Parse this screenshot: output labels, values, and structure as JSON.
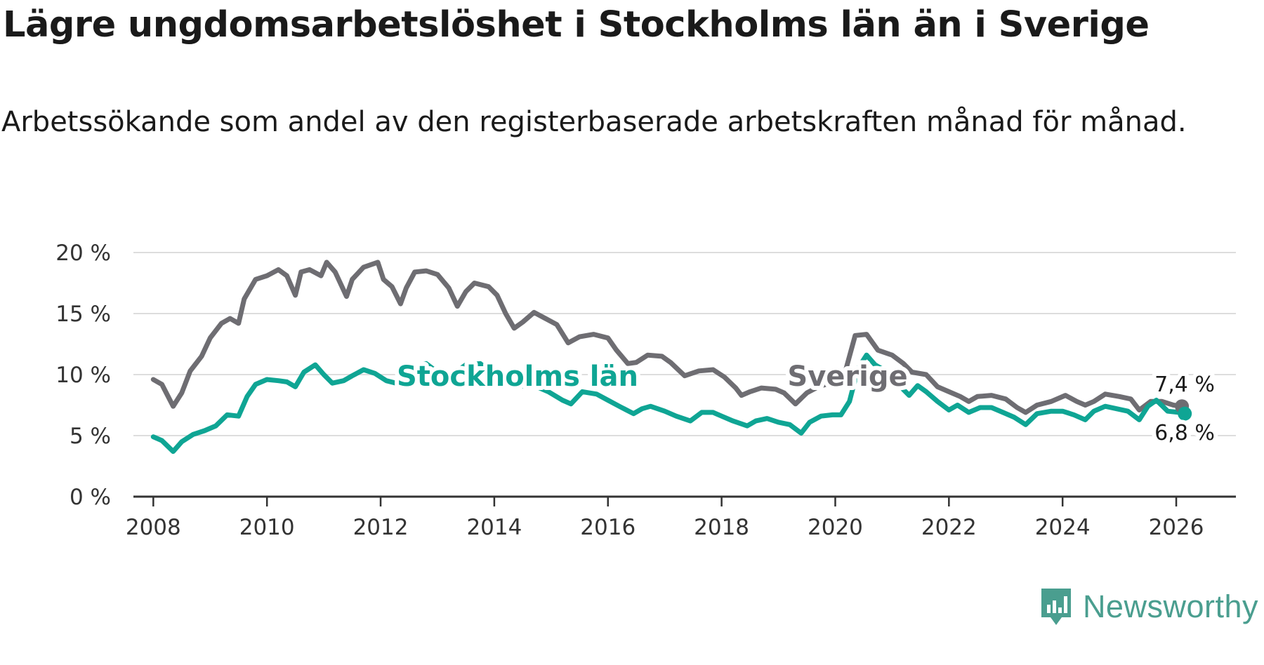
{
  "title": "Lägre ungdomsarbetslöshet i Stockholms län än i Sverige",
  "subtitle": "Arbetssökande som andel av den registerbaserade arbetskraften månad för månad.",
  "brand": "Newsworthy",
  "colors": {
    "sverige": "#6e6d72",
    "stockholm": "#0fa594",
    "grid": "#dddddd",
    "axis": "#333333",
    "text": "#333333"
  },
  "chart_data": {
    "type": "line",
    "title": "Lägre ungdomsarbetslöshet i Stockholms län än i Sverige",
    "xlabel": "",
    "ylabel": "",
    "xlim": [
      2007.65,
      2027.05
    ],
    "ylim": [
      0,
      20
    ],
    "xticks": [
      2008,
      2010,
      2012,
      2014,
      2016,
      2018,
      2020,
      2022,
      2024,
      2026
    ],
    "xtick_labels": [
      "2008",
      "2010",
      "2012",
      "2014",
      "2016",
      "2018",
      "2020",
      "2022",
      "2024",
      "2026"
    ],
    "yticks": [
      0,
      5,
      10,
      15,
      20
    ],
    "ytick_labels": [
      "0 %",
      "5 %",
      "10 %",
      "15 %",
      "20 %"
    ],
    "grid": true,
    "series": [
      {
        "name": "Sverige",
        "label": "Sverige",
        "end_label": "7,4 %",
        "points": [
          [
            2008.0,
            9.6
          ],
          [
            2008.15,
            9.2
          ],
          [
            2008.35,
            7.4
          ],
          [
            2008.5,
            8.5
          ],
          [
            2008.65,
            10.3
          ],
          [
            2008.85,
            11.5
          ],
          [
            2009.0,
            13.0
          ],
          [
            2009.2,
            14.2
          ],
          [
            2009.35,
            14.6
          ],
          [
            2009.5,
            14.2
          ],
          [
            2009.6,
            16.2
          ],
          [
            2009.8,
            17.8
          ],
          [
            2010.0,
            18.1
          ],
          [
            2010.2,
            18.6
          ],
          [
            2010.35,
            18.1
          ],
          [
            2010.5,
            16.5
          ],
          [
            2010.6,
            18.4
          ],
          [
            2010.75,
            18.6
          ],
          [
            2010.95,
            18.1
          ],
          [
            2011.05,
            19.2
          ],
          [
            2011.2,
            18.4
          ],
          [
            2011.4,
            16.4
          ],
          [
            2011.5,
            17.8
          ],
          [
            2011.7,
            18.8
          ],
          [
            2011.95,
            19.2
          ],
          [
            2012.05,
            17.8
          ],
          [
            2012.2,
            17.2
          ],
          [
            2012.35,
            15.8
          ],
          [
            2012.45,
            17.1
          ],
          [
            2012.6,
            18.4
          ],
          [
            2012.8,
            18.5
          ],
          [
            2013.0,
            18.2
          ],
          [
            2013.2,
            17.1
          ],
          [
            2013.35,
            15.6
          ],
          [
            2013.5,
            16.8
          ],
          [
            2013.65,
            17.5
          ],
          [
            2013.9,
            17.2
          ],
          [
            2014.05,
            16.5
          ],
          [
            2014.2,
            15.0
          ],
          [
            2014.35,
            13.8
          ],
          [
            2014.5,
            14.3
          ],
          [
            2014.7,
            15.1
          ],
          [
            2014.9,
            14.6
          ],
          [
            2015.1,
            14.1
          ],
          [
            2015.3,
            12.6
          ],
          [
            2015.5,
            13.1
          ],
          [
            2015.75,
            13.3
          ],
          [
            2016.0,
            13.0
          ],
          [
            2016.15,
            12.0
          ],
          [
            2016.35,
            10.9
          ],
          [
            2016.5,
            11.0
          ],
          [
            2016.7,
            11.6
          ],
          [
            2016.95,
            11.5
          ],
          [
            2017.1,
            11.0
          ],
          [
            2017.35,
            9.9
          ],
          [
            2017.6,
            10.3
          ],
          [
            2017.85,
            10.4
          ],
          [
            2018.05,
            9.8
          ],
          [
            2018.25,
            8.9
          ],
          [
            2018.35,
            8.3
          ],
          [
            2018.5,
            8.6
          ],
          [
            2018.7,
            8.9
          ],
          [
            2018.95,
            8.8
          ],
          [
            2019.1,
            8.5
          ],
          [
            2019.3,
            7.6
          ],
          [
            2019.5,
            8.5
          ],
          [
            2019.7,
            9.0
          ],
          [
            2019.9,
            9.3
          ],
          [
            2020.15,
            9.8
          ],
          [
            2020.35,
            13.2
          ],
          [
            2020.55,
            13.3
          ],
          [
            2020.75,
            12.0
          ],
          [
            2021.0,
            11.6
          ],
          [
            2021.2,
            10.9
          ],
          [
            2021.35,
            10.2
          ],
          [
            2021.6,
            10.0
          ],
          [
            2021.8,
            9.0
          ],
          [
            2022.0,
            8.6
          ],
          [
            2022.2,
            8.2
          ],
          [
            2022.35,
            7.8
          ],
          [
            2022.5,
            8.2
          ],
          [
            2022.75,
            8.3
          ],
          [
            2023.0,
            8.0
          ],
          [
            2023.2,
            7.3
          ],
          [
            2023.35,
            6.9
          ],
          [
            2023.55,
            7.5
          ],
          [
            2023.8,
            7.8
          ],
          [
            2024.05,
            8.3
          ],
          [
            2024.25,
            7.8
          ],
          [
            2024.4,
            7.5
          ],
          [
            2024.55,
            7.8
          ],
          [
            2024.75,
            8.4
          ],
          [
            2025.0,
            8.2
          ],
          [
            2025.2,
            8.0
          ],
          [
            2025.35,
            7.1
          ],
          [
            2025.55,
            7.8
          ],
          [
            2025.75,
            7.8
          ],
          [
            2025.95,
            7.5
          ],
          [
            2026.1,
            7.4
          ]
        ]
      },
      {
        "name": "Stockholms län",
        "label": "Stockholms län",
        "end_label": "6,8 %",
        "points": [
          [
            2008.0,
            4.9
          ],
          [
            2008.15,
            4.6
          ],
          [
            2008.35,
            3.7
          ],
          [
            2008.5,
            4.5
          ],
          [
            2008.7,
            5.1
          ],
          [
            2008.9,
            5.4
          ],
          [
            2009.1,
            5.8
          ],
          [
            2009.3,
            6.7
          ],
          [
            2009.5,
            6.6
          ],
          [
            2009.65,
            8.2
          ],
          [
            2009.8,
            9.2
          ],
          [
            2010.0,
            9.6
          ],
          [
            2010.2,
            9.5
          ],
          [
            2010.35,
            9.4
          ],
          [
            2010.5,
            9.0
          ],
          [
            2010.65,
            10.2
          ],
          [
            2010.85,
            10.8
          ],
          [
            2011.0,
            10.0
          ],
          [
            2011.15,
            9.3
          ],
          [
            2011.35,
            9.5
          ],
          [
            2011.5,
            9.9
          ],
          [
            2011.7,
            10.4
          ],
          [
            2011.9,
            10.1
          ],
          [
            2012.1,
            9.5
          ],
          [
            2012.35,
            9.2
          ],
          [
            2012.6,
            10.6
          ],
          [
            2012.8,
            10.9
          ],
          [
            2013.0,
            10.2
          ],
          [
            2013.25,
            10.0
          ],
          [
            2013.5,
            10.8
          ],
          [
            2013.75,
            10.9
          ],
          [
            2014.0,
            10.0
          ],
          [
            2014.2,
            9.3
          ],
          [
            2014.4,
            9.0
          ],
          [
            2014.65,
            9.2
          ],
          [
            2014.95,
            8.6
          ],
          [
            2015.2,
            7.9
          ],
          [
            2015.35,
            7.6
          ],
          [
            2015.55,
            8.6
          ],
          [
            2015.8,
            8.4
          ],
          [
            2016.0,
            7.9
          ],
          [
            2016.2,
            7.4
          ],
          [
            2016.45,
            6.8
          ],
          [
            2016.6,
            7.2
          ],
          [
            2016.75,
            7.4
          ],
          [
            2017.0,
            7.0
          ],
          [
            2017.2,
            6.6
          ],
          [
            2017.45,
            6.2
          ],
          [
            2017.65,
            6.9
          ],
          [
            2017.85,
            6.9
          ],
          [
            2018.0,
            6.6
          ],
          [
            2018.2,
            6.2
          ],
          [
            2018.45,
            5.8
          ],
          [
            2018.6,
            6.2
          ],
          [
            2018.8,
            6.4
          ],
          [
            2019.0,
            6.1
          ],
          [
            2019.2,
            5.9
          ],
          [
            2019.4,
            5.2
          ],
          [
            2019.55,
            6.1
          ],
          [
            2019.75,
            6.6
          ],
          [
            2019.95,
            6.7
          ],
          [
            2020.1,
            6.7
          ],
          [
            2020.25,
            7.8
          ],
          [
            2020.4,
            10.5
          ],
          [
            2020.55,
            11.6
          ],
          [
            2020.7,
            10.8
          ],
          [
            2020.85,
            10.4
          ],
          [
            2021.0,
            9.6
          ],
          [
            2021.15,
            9.0
          ],
          [
            2021.3,
            8.3
          ],
          [
            2021.45,
            9.1
          ],
          [
            2021.6,
            8.6
          ],
          [
            2021.8,
            7.8
          ],
          [
            2022.0,
            7.1
          ],
          [
            2022.15,
            7.5
          ],
          [
            2022.35,
            6.9
          ],
          [
            2022.55,
            7.3
          ],
          [
            2022.75,
            7.3
          ],
          [
            2022.95,
            6.9
          ],
          [
            2023.15,
            6.5
          ],
          [
            2023.35,
            5.9
          ],
          [
            2023.55,
            6.8
          ],
          [
            2023.8,
            7.0
          ],
          [
            2024.0,
            7.0
          ],
          [
            2024.2,
            6.7
          ],
          [
            2024.4,
            6.3
          ],
          [
            2024.55,
            7.0
          ],
          [
            2024.75,
            7.4
          ],
          [
            2024.95,
            7.2
          ],
          [
            2025.15,
            7.0
          ],
          [
            2025.35,
            6.3
          ],
          [
            2025.5,
            7.4
          ],
          [
            2025.65,
            7.9
          ],
          [
            2025.85,
            7.0
          ],
          [
            2026.05,
            6.9
          ],
          [
            2026.15,
            6.8
          ]
        ]
      }
    ]
  }
}
